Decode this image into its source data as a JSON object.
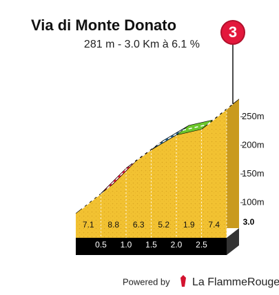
{
  "chart_data": {
    "type": "profile",
    "title": "Via di Monte Donato",
    "subtitle": "281 m - 3.0 Km à 6.1 %",
    "badge": "3",
    "x": [
      0,
      0.5,
      1,
      1.5,
      2,
      2.5,
      3
    ],
    "values": [
      98,
      133,
      177,
      209,
      235,
      245,
      281
    ],
    "gradients": [
      "7.1",
      "8.8",
      "6.3",
      "5.2",
      "1.9",
      "7.4"
    ],
    "segment_colors": [
      "#e3183c",
      "#e3183c",
      "#e3183c",
      "#1f5e8c",
      "#6cc72c",
      "#e3183c"
    ],
    "xlim": [
      0,
      3
    ],
    "xticks": [
      {
        "value": 0.5,
        "label": "0.5"
      },
      {
        "value": 1,
        "label": "1.0"
      },
      {
        "value": 1.5,
        "label": "1.5"
      },
      {
        "value": 2,
        "label": "2.0"
      },
      {
        "value": 2.5,
        "label": "2.5"
      },
      {
        "value": 3,
        "label": "3.0"
      }
    ],
    "ylim": [
      0,
      300
    ],
    "yticks": [
      {
        "value": 100,
        "label": "100m"
      },
      {
        "value": 150,
        "label": "150m"
      },
      {
        "value": 200,
        "label": "200m"
      },
      {
        "value": 250,
        "label": "250m"
      }
    ],
    "footer": {
      "powered": "Powered by",
      "brand": "La FlammeRouge"
    }
  }
}
